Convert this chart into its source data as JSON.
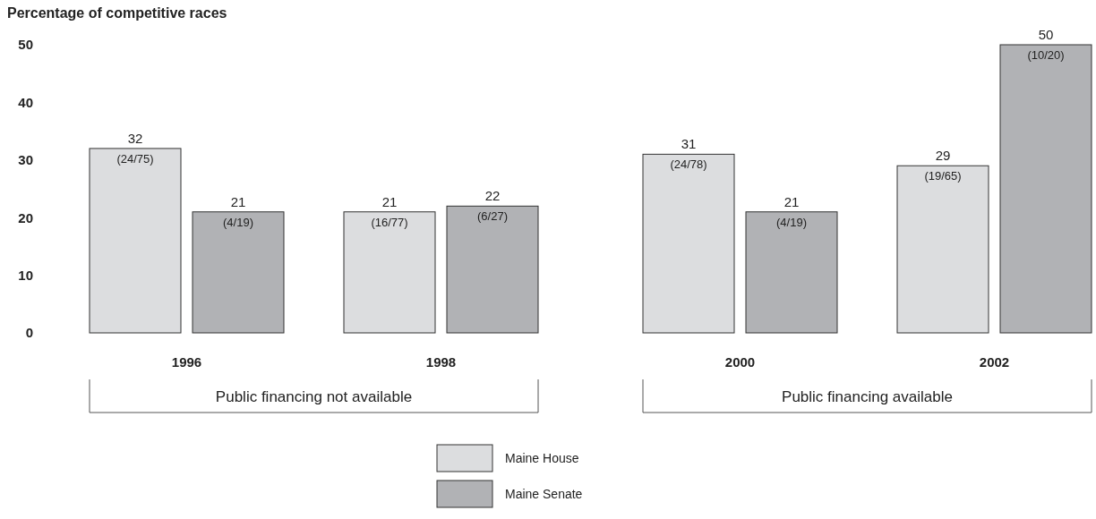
{
  "chart_data": {
    "type": "bar",
    "title": "Percentage of competitive races",
    "categories": [
      "1996",
      "1998",
      "2000",
      "2002"
    ],
    "series": [
      {
        "name": "Maine House",
        "color": "#dcdddf",
        "values": [
          32,
          21,
          31,
          29
        ],
        "value_labels": [
          "32\n(24/75)",
          "21\n(16/77)",
          "31\n(24/78)",
          "29\n(19/65)"
        ]
      },
      {
        "name": "Maine Senate",
        "color": "#b1b2b5",
        "values": [
          21,
          22,
          21,
          50
        ],
        "value_labels": [
          "21\n(4/19)",
          "22\n(6/27)",
          "21\n(4/19)",
          "50\n(10/20)"
        ]
      }
    ],
    "ylim": [
      0,
      50
    ],
    "yticks": [
      0,
      10,
      20,
      30,
      40,
      50
    ],
    "grid": false,
    "legend": "bottom",
    "annotations": [
      "Public financing not available",
      "Public financing available"
    ]
  }
}
